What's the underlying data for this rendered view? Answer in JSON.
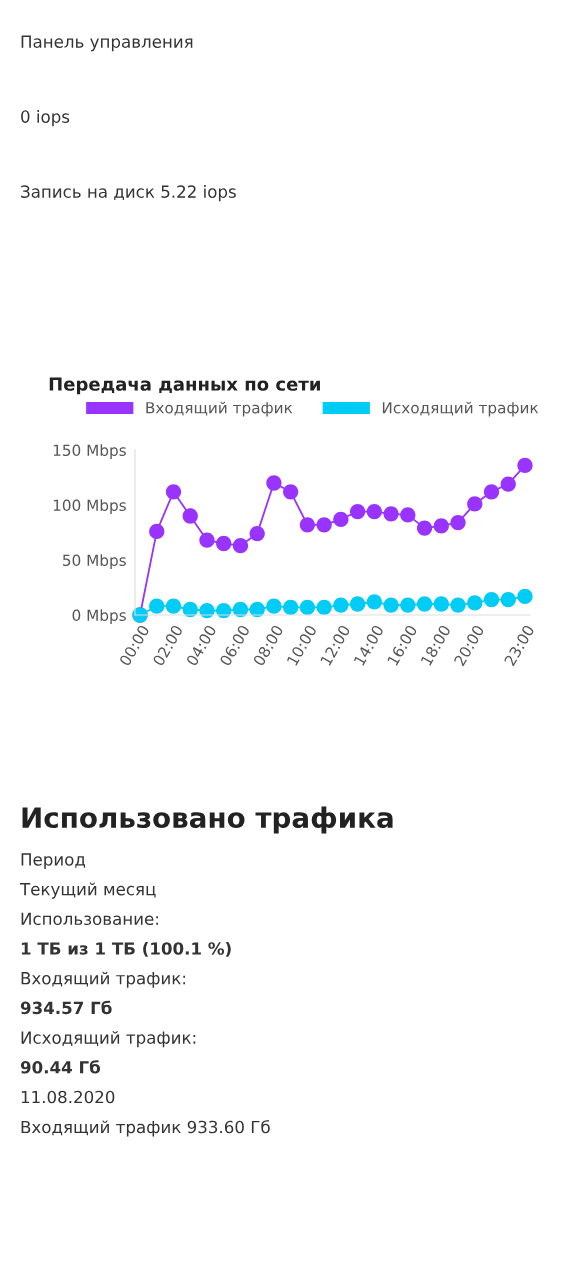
{
  "chart_data": [
    {
      "type": "other",
      "annotations": [
        "Панель управления",
        "0 iops",
        "Запись на диск 5.22 iops"
      ]
    },
    {
      "type": "line",
      "title": "Передача данных по сети",
      "categories": [
        "00:00",
        null,
        "02:00",
        null,
        "04:00",
        null,
        "06:00",
        null,
        "08:00",
        null,
        "10:00",
        null,
        "12:00",
        null,
        "14:00",
        null,
        "16:00",
        null,
        "18:00",
        null,
        "20:00",
        null,
        null,
        "23:00"
      ],
      "series": [
        {
          "name": "Входящий трафик",
          "color": "#9933ff",
          "values": [
            0,
            76,
            112,
            90,
            68,
            65,
            63,
            74,
            120,
            112,
            82,
            82,
            87,
            94,
            94,
            92,
            91,
            79,
            81,
            84,
            101,
            112,
            119,
            136
          ]
        },
        {
          "name": "Исходящий трафик",
          "color": "#00ccf5",
          "values": [
            0,
            8,
            8,
            5,
            4,
            4,
            5,
            5,
            8,
            7,
            7,
            7,
            9,
            10,
            12,
            9,
            9,
            10,
            10,
            9,
            11,
            14,
            14,
            17
          ]
        }
      ],
      "ylim": [
        0,
        150
      ],
      "yticks": [
        {
          "value": 0,
          "label": "0 Mbps"
        },
        {
          "value": 50,
          "label": "50 Mbps"
        },
        {
          "value": 100,
          "label": "100 Mbps"
        },
        {
          "value": 150,
          "label": "150 Mbps"
        }
      ],
      "legend": "top",
      "marker": "circle",
      "line_style": "solid",
      "grid": false
    },
    {
      "type": "other",
      "title": "Использовано трафика",
      "annotations": [
        "Период",
        "Текущий месяц",
        "Использование:",
        "1 ТБ из 1 ТБ (100.1 %)",
        "Входящий трафик:",
        "934.57 Гб",
        "Исходящий трафик:",
        "90.44 Гб",
        "11.08.2020",
        "Входящий трафик 933.60 Гб"
      ]
    }
  ]
}
